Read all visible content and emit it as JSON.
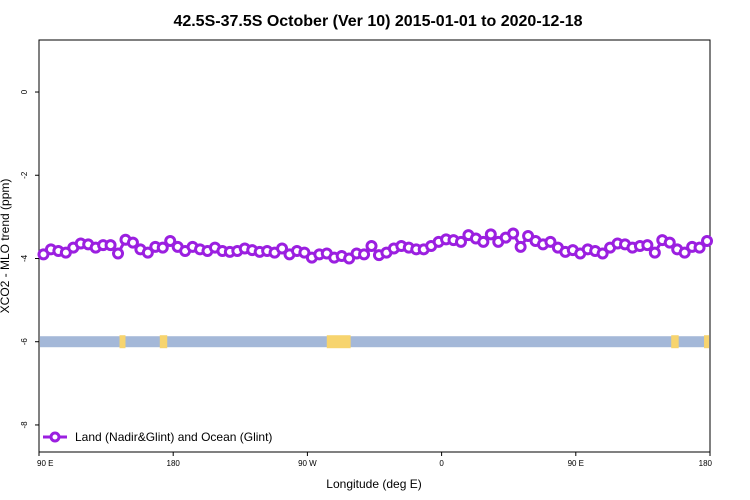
{
  "chart_data": {
    "type": "line",
    "title": "42.5S-37.5S October (Ver 10)   2015-01-01 to 2020-12-18",
    "xlabel": "Longitude (deg E)",
    "ylabel": "XCO2 - MLO trend (ppm)",
    "x_ticks": [
      {
        "value": 90,
        "label": "90 E"
      },
      {
        "value": 180,
        "label": "180"
      },
      {
        "value": 270,
        "label": "90 W"
      },
      {
        "value": 360,
        "label": "0"
      },
      {
        "value": 450,
        "label": "90 E"
      },
      {
        "value": 540,
        "label": "180"
      }
    ],
    "xlim": [
      90,
      540
    ],
    "y_ticks": [
      0,
      -2,
      -4,
      -6,
      -8
    ],
    "ylim": [
      -8.65,
      1.25
    ],
    "grid": false,
    "legend_position": "bottom-left",
    "series": [
      {
        "name": "Land (Nadir&Glint) and Ocean (Glint)",
        "color": "#9b1fe0",
        "x": [
          93,
          98,
          103,
          108,
          113,
          118,
          123,
          128,
          133,
          138,
          143,
          148,
          153,
          158,
          163,
          168,
          173,
          178,
          183,
          188,
          193,
          198,
          203,
          208,
          213,
          218,
          223,
          228,
          233,
          238,
          243,
          248,
          253,
          258,
          263,
          268,
          273,
          278,
          283,
          288,
          293,
          298,
          303,
          308,
          313,
          318,
          323,
          328,
          333,
          338,
          343,
          348,
          353,
          358,
          363,
          368,
          373,
          378,
          383,
          388,
          393,
          398,
          403,
          408,
          413,
          418,
          423,
          428,
          433,
          438,
          443,
          448,
          453,
          458,
          463,
          468,
          473,
          478,
          483,
          488,
          493,
          498,
          503,
          508,
          513,
          518,
          523,
          528,
          533,
          538
        ],
        "y": [
          -3.9,
          -3.78,
          -3.82,
          -3.86,
          -3.74,
          -3.64,
          -3.66,
          -3.74,
          -3.68,
          -3.68,
          -3.88,
          -3.55,
          -3.62,
          -3.78,
          -3.86,
          -3.72,
          -3.74,
          -3.58,
          -3.72,
          -3.82,
          -3.72,
          -3.78,
          -3.82,
          -3.74,
          -3.82,
          -3.84,
          -3.82,
          -3.76,
          -3.8,
          -3.84,
          -3.82,
          -3.86,
          -3.76,
          -3.9,
          -3.82,
          -3.86,
          -3.98,
          -3.9,
          -3.88,
          -3.98,
          -3.94,
          -4.0,
          -3.88,
          -3.9,
          -3.7,
          -3.92,
          -3.86,
          -3.76,
          -3.7,
          -3.74,
          -3.78,
          -3.78,
          -3.7,
          -3.6,
          -3.54,
          -3.56,
          -3.6,
          -3.44,
          -3.52,
          -3.6,
          -3.42,
          -3.6,
          -3.5,
          -3.4,
          -3.72,
          -3.46,
          -3.58,
          -3.66,
          -3.6,
          -3.74,
          -3.84,
          -3.8,
          -3.88,
          -3.78,
          -3.82,
          -3.88,
          -3.74,
          -3.64,
          -3.66,
          -3.74,
          -3.7,
          -3.68,
          -3.86,
          -3.56,
          -3.62,
          -3.78,
          -3.86,
          -3.72,
          -3.74,
          -3.58
        ]
      }
    ],
    "surface_band": {
      "y_value": -6.0,
      "colors": {
        "ocean": "#a4b8d8",
        "land": "#f7d46e"
      },
      "land_ranges": [
        [
          144,
          148
        ],
        [
          171,
          176
        ],
        [
          283,
          299
        ],
        [
          514,
          519
        ],
        [
          536,
          540
        ]
      ]
    }
  }
}
